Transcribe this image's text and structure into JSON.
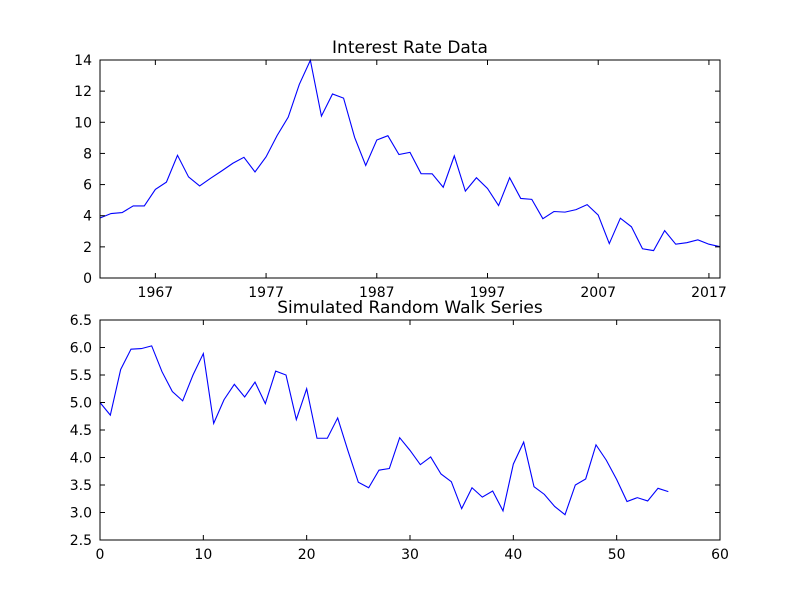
{
  "chart_data": [
    {
      "type": "line",
      "title": "Interest Rate Data",
      "xlabel": "",
      "ylabel": "",
      "xlim": [
        1962,
        2018
      ],
      "ylim": [
        0,
        14
      ],
      "grid": false,
      "line_color": "#0000ff",
      "x_ticks": [
        1967,
        1977,
        1987,
        1997,
        2007,
        2017
      ],
      "y_ticks": [
        0,
        2,
        4,
        6,
        8,
        10,
        12,
        14
      ],
      "series": [
        {
          "x": [
            1962,
            1963,
            1964,
            1965,
            1966,
            1967,
            1968,
            1969,
            1970,
            1971,
            1972,
            1973,
            1974,
            1975,
            1976,
            1977,
            1978,
            1979,
            1980,
            1981,
            1982,
            1983,
            1984,
            1985,
            1986,
            1987,
            1988,
            1989,
            1990,
            1991,
            1992,
            1993,
            1994,
            1995,
            1996,
            1997,
            1998,
            1999,
            2000,
            2001,
            2002,
            2003,
            2004,
            2005,
            2006,
            2007,
            2008,
            2009,
            2010,
            2011,
            2012,
            2013,
            2014,
            2015,
            2016,
            2017,
            2018
          ],
          "values": [
            3.85,
            4.14,
            4.2,
            4.63,
            4.63,
            5.69,
            6.16,
            7.88,
            6.49,
            5.91,
            6.41,
            6.88,
            7.37,
            7.75,
            6.81,
            7.78,
            9.15,
            10.33,
            12.43,
            13.98,
            10.4,
            11.82,
            11.55,
            9.03,
            7.23,
            8.86,
            9.14,
            7.93,
            8.07,
            6.7,
            6.69,
            5.83,
            7.84,
            5.58,
            6.44,
            5.75,
            4.65,
            6.44,
            5.11,
            5.05,
            3.81,
            4.27,
            4.23,
            4.39,
            4.71,
            4.04,
            2.21,
            3.84,
            3.29,
            1.88,
            1.76,
            3.04,
            2.17,
            2.27,
            2.45,
            2.17,
            2.01
          ]
        }
      ]
    },
    {
      "type": "line",
      "title": "Simulated Random Walk Series",
      "xlabel": "",
      "ylabel": "",
      "xlim": [
        0,
        60
      ],
      "ylim": [
        2.5,
        6.5
      ],
      "grid": false,
      "line_color": "#0000ff",
      "x_ticks": [
        0,
        10,
        20,
        30,
        40,
        50,
        60
      ],
      "y_ticks": [
        "2.5",
        "3.0",
        "3.5",
        "4.0",
        "4.5",
        "5.0",
        "5.5",
        "6.0",
        "6.5"
      ],
      "series": [
        {
          "x": [
            0,
            1,
            2,
            3,
            4,
            5,
            6,
            7,
            8,
            9,
            10,
            11,
            12,
            13,
            14,
            15,
            16,
            17,
            18,
            19,
            20,
            21,
            22,
            23,
            24,
            25,
            26,
            27,
            28,
            29,
            30,
            31,
            32,
            33,
            34,
            35,
            36,
            37,
            38,
            39,
            40,
            41,
            42,
            43,
            44,
            45,
            46,
            47,
            48,
            49,
            50,
            51,
            52,
            53,
            54,
            55
          ],
          "values": [
            5.0,
            4.77,
            5.6,
            5.97,
            5.98,
            6.03,
            5.56,
            5.2,
            5.03,
            5.5,
            5.89,
            4.62,
            5.05,
            5.33,
            5.1,
            5.37,
            4.98,
            5.57,
            5.5,
            4.69,
            5.25,
            4.35,
            4.35,
            4.72,
            4.12,
            3.55,
            3.45,
            3.77,
            3.8,
            4.36,
            4.13,
            3.87,
            4.01,
            3.7,
            3.56,
            3.07,
            3.45,
            3.28,
            3.39,
            3.03,
            3.88,
            4.28,
            3.47,
            3.33,
            3.11,
            2.96,
            3.5,
            3.61,
            4.23,
            3.95,
            3.6,
            3.2,
            3.27,
            3.21,
            3.44,
            3.38
          ]
        }
      ]
    }
  ]
}
